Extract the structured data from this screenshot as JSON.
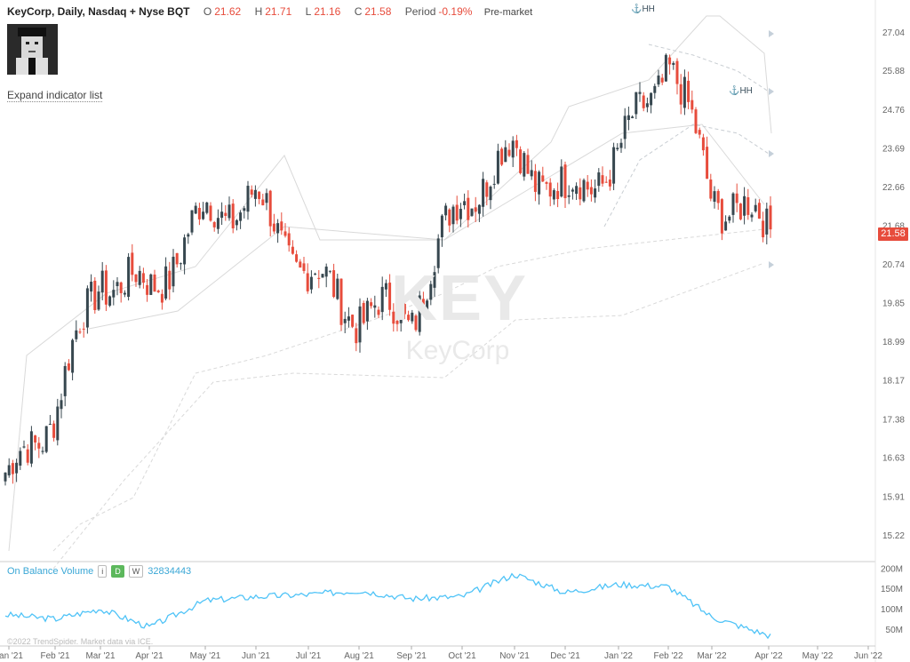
{
  "header": {
    "title": "KeyCorp, Daily, Nasdaq + Nyse BQT",
    "open_label": "O",
    "open": "21.62",
    "high_label": "H",
    "high": "21.71",
    "low_label": "L",
    "low": "21.16",
    "close_label": "C",
    "close": "21.58",
    "period_label": "Period",
    "period": "-0.19%",
    "session": "Pre-market"
  },
  "expand_link": "Expand indicator list",
  "watermark": {
    "ticker": "KEY",
    "name": "KeyCorp"
  },
  "annotations": {
    "hh1": "⚓HH",
    "hh2": "⚓HH"
  },
  "last_price_tag": "21.58",
  "obv": {
    "label": "On Balance Volume",
    "chip_info": "i",
    "chip_d": "D",
    "chip_w": "W",
    "value": "32834443"
  },
  "copyright": "©2022 TrendSpider. Market data via ICE.",
  "colors": {
    "up": "#37474f",
    "down": "#e74c3c",
    "obv": "#4fc3f7",
    "levels": "#d9d9d9"
  },
  "chart_data": [
    {
      "type": "candlestick",
      "title": "KeyCorp, Daily, Nasdaq + Nyse BQT",
      "y_scale": "log",
      "y_ticks": [
        15.22,
        15.91,
        16.63,
        17.38,
        18.17,
        18.99,
        19.85,
        20.74,
        21.68,
        22.66,
        23.69,
        24.76,
        25.88,
        27.04
      ],
      "x_ticks": [
        "Jan '21",
        "Feb '21",
        "Mar '21",
        "Apr '21",
        "May '21",
        "Jun '21",
        "Jul '21",
        "Aug '21",
        "Sep '21",
        "Oct '21",
        "Nov '21",
        "Dec '21",
        "Jan '22",
        "Feb '22",
        "Mar '22",
        "Apr '22",
        "May '22",
        "Jun '22"
      ],
      "approx_close_path": [
        {
          "date": "Jan '21",
          "close": 16.2
        },
        {
          "date": "Feb '21",
          "close": 17.6
        },
        {
          "date": "Mar '21",
          "close": 20.5
        },
        {
          "date": "Apr '21",
          "close": 20.1
        },
        {
          "date": "May '21",
          "close": 22.0
        },
        {
          "date": "Jun '21",
          "close": 22.3
        },
        {
          "date": "Jul '21",
          "close": 20.5
        },
        {
          "date": "Aug '21",
          "close": 19.6
        },
        {
          "date": "Sep '21",
          "close": 19.6
        },
        {
          "date": "Oct '21",
          "close": 22.4
        },
        {
          "date": "Nov '21",
          "close": 23.6
        },
        {
          "date": "Dec '21",
          "close": 22.4
        },
        {
          "date": "Jan '22",
          "close": 23.4
        },
        {
          "date": "Feb '22",
          "close": 26.3
        },
        {
          "date": "Mar '22",
          "close": 22.5
        },
        {
          "date": "Apr '22",
          "close": 21.58
        }
      ],
      "last": {
        "open": 21.62,
        "high": 21.71,
        "low": 21.16,
        "close": 21.58
      }
    },
    {
      "type": "line",
      "title": "On Balance Volume",
      "y_ticks": [
        "50M",
        "100M",
        "150M",
        "200M"
      ],
      "y_values": [
        50,
        100,
        150,
        200
      ],
      "approx_path": [
        {
          "date": "Jan '21",
          "obv_m": 85
        },
        {
          "date": "Feb '21",
          "obv_m": 75
        },
        {
          "date": "Mar '21",
          "obv_m": 100
        },
        {
          "date": "Apr '21",
          "obv_m": 55
        },
        {
          "date": "May '21",
          "obv_m": 120
        },
        {
          "date": "Jun '21",
          "obv_m": 130
        },
        {
          "date": "Jul '21",
          "obv_m": 135
        },
        {
          "date": "Aug '21",
          "obv_m": 145
        },
        {
          "date": "Sep '21",
          "obv_m": 125
        },
        {
          "date": "Oct '21",
          "obv_m": 130
        },
        {
          "date": "Nov '21",
          "obv_m": 185
        },
        {
          "date": "Dec '21",
          "obv_m": 140
        },
        {
          "date": "Jan '22",
          "obv_m": 160
        },
        {
          "date": "Feb '22",
          "obv_m": 155
        },
        {
          "date": "Mar '22",
          "obv_m": 80
        },
        {
          "date": "Apr '22",
          "obv_m": 35
        }
      ],
      "value": 32834443
    }
  ]
}
